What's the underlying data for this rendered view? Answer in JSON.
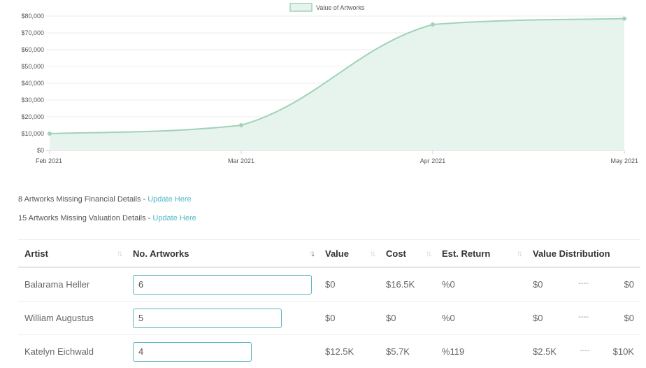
{
  "chart_data": {
    "type": "area",
    "legend": "Value of Artworks",
    "legend_position": "top-center",
    "x": [
      "Feb 2021",
      "Mar 2021",
      "Apr 2021",
      "May 2021"
    ],
    "series": [
      {
        "name": "Value of Artworks",
        "values": [
          10000,
          15000,
          75000,
          78500
        ]
      }
    ],
    "yticks": [
      "$0",
      "$10,000",
      "$20,000",
      "$30,000",
      "$40,000",
      "$50,000",
      "$60,000",
      "$70,000",
      "$80,000"
    ],
    "ylim": [
      0,
      80000
    ],
    "grid": true,
    "colors": {
      "line": "#9fd3b9",
      "fill": "#e7f4ed",
      "point": "#9fd3b9"
    }
  },
  "notices": {
    "financial_text": "8 Artworks Missing Financial Details - ",
    "financial_link": "Update Here",
    "valuation_text": "15 Artworks Missing Valuation Details - ",
    "valuation_link": "Update Here"
  },
  "table": {
    "headers": {
      "artist": "Artist",
      "artworks": "No. Artworks",
      "value": "Value",
      "cost": "Cost",
      "return": "Est. Return",
      "distribution": "Value Distribution"
    },
    "rows": [
      {
        "artist": "Balarama Heller",
        "artworks": "6",
        "value": "$0",
        "cost": "$16.5K",
        "return": "%0",
        "dist_min": "$0",
        "dist_sep": "----",
        "dist_max": "$0"
      },
      {
        "artist": "William Augustus",
        "artworks": "5",
        "value": "$0",
        "cost": "$0",
        "return": "%0",
        "dist_min": "$0",
        "dist_sep": "----",
        "dist_max": "$0"
      },
      {
        "artist": "Katelyn Eichwald",
        "artworks": "4",
        "value": "$12.5K",
        "cost": "$5.7K",
        "return": "%119",
        "dist_min": "$2.5K",
        "dist_sep": "----",
        "dist_max": "$10K"
      }
    ]
  }
}
